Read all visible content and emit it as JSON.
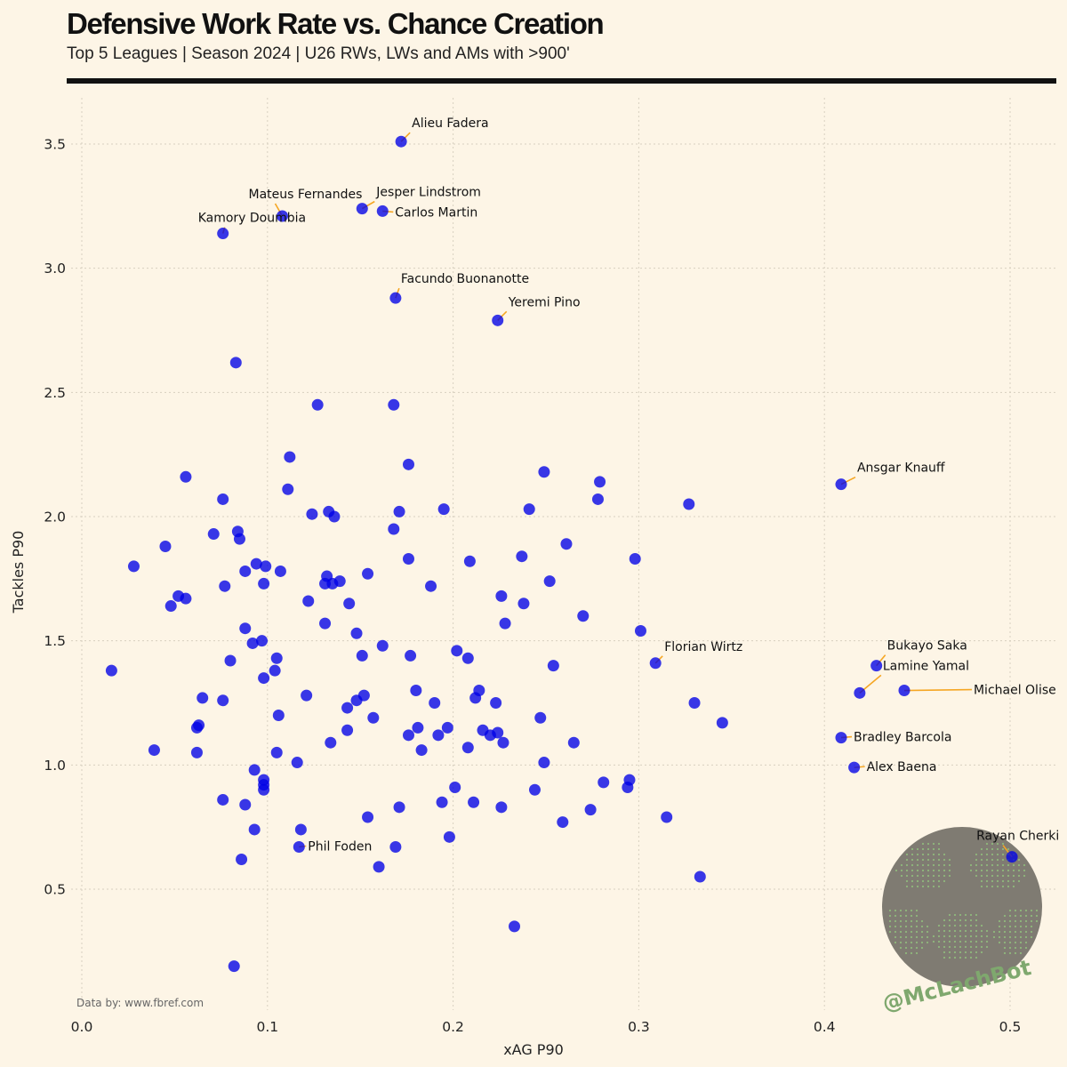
{
  "header": {
    "title": "Defensive Work Rate vs. Chance Creation",
    "subtitle": "Top 5 Leagues | Season 2024 | U26 RWs, LWs and AMs with >900'"
  },
  "footer": {
    "source": "Data by: www.fbref.com",
    "handle": "@McLachBot"
  },
  "colors": {
    "background": "#fdf5e6",
    "point": "#0000e6",
    "leader": "#f5a623",
    "logo": "#7f7b72",
    "handle": "#7fa86e"
  },
  "chart_data": {
    "type": "scatter",
    "title": "Defensive Work Rate vs. Chance Creation",
    "subtitle": "Top 5 Leagues | Season 2024 | U26 RWs, LWs and AMs with >900'",
    "xlabel": "xAG P90",
    "ylabel": "Tackles P90",
    "xlim": [
      -0.01,
      0.53
    ],
    "ylim": [
      0.05,
      3.68
    ],
    "xticks": [
      "0.0",
      "0.1",
      "0.2",
      "0.3",
      "0.4",
      "0.5"
    ],
    "yticks": [
      "0.5",
      "1.0",
      "1.5",
      "2.0",
      "2.5",
      "3.0",
      "3.5"
    ],
    "grid": true,
    "labeled": [
      {
        "name": "Alieu Fadera",
        "x": 0.172,
        "y": 3.51
      },
      {
        "name": "Mateus Fernandes",
        "x": 0.108,
        "y": 3.21
      },
      {
        "name": "Jesper Lindstrom",
        "x": 0.151,
        "y": 3.24
      },
      {
        "name": "Carlos Martin",
        "x": 0.162,
        "y": 3.23
      },
      {
        "name": "Kamory Doumbia",
        "x": 0.076,
        "y": 3.14
      },
      {
        "name": "Facundo Buonanotte",
        "x": 0.169,
        "y": 2.88
      },
      {
        "name": "Yeremi Pino",
        "x": 0.224,
        "y": 2.79
      },
      {
        "name": "Ansgar Knauff",
        "x": 0.409,
        "y": 2.13
      },
      {
        "name": "Florian Wirtz",
        "x": 0.309,
        "y": 1.41
      },
      {
        "name": "Bukayo Saka",
        "x": 0.428,
        "y": 1.4
      },
      {
        "name": "Lamine Yamal",
        "x": 0.419,
        "y": 1.29
      },
      {
        "name": "Michael Olise",
        "x": 0.443,
        "y": 1.3
      },
      {
        "name": "Bradley Barcola",
        "x": 0.409,
        "y": 1.11
      },
      {
        "name": "Alex Baena",
        "x": 0.416,
        "y": 0.99
      },
      {
        "name": "Phil Foden",
        "x": 0.117,
        "y": 0.67
      },
      {
        "name": "Rayan Cherki",
        "x": 0.501,
        "y": 0.63
      }
    ],
    "points": [
      [
        0.083,
        2.62
      ],
      [
        0.127,
        2.45
      ],
      [
        0.168,
        2.45
      ],
      [
        0.112,
        2.24
      ],
      [
        0.176,
        2.21
      ],
      [
        0.056,
        2.16
      ],
      [
        0.249,
        2.18
      ],
      [
        0.279,
        2.14
      ],
      [
        0.076,
        2.07
      ],
      [
        0.111,
        2.11
      ],
      [
        0.278,
        2.07
      ],
      [
        0.327,
        2.05
      ],
      [
        0.124,
        2.01
      ],
      [
        0.133,
        2.02
      ],
      [
        0.136,
        2.0
      ],
      [
        0.171,
        2.02
      ],
      [
        0.195,
        2.03
      ],
      [
        0.241,
        2.03
      ],
      [
        0.084,
        1.94
      ],
      [
        0.071,
        1.93
      ],
      [
        0.085,
        1.91
      ],
      [
        0.168,
        1.95
      ],
      [
        0.261,
        1.89
      ],
      [
        0.045,
        1.88
      ],
      [
        0.028,
        1.8
      ],
      [
        0.094,
        1.81
      ],
      [
        0.099,
        1.8
      ],
      [
        0.088,
        1.78
      ],
      [
        0.107,
        1.78
      ],
      [
        0.154,
        1.77
      ],
      [
        0.176,
        1.83
      ],
      [
        0.209,
        1.82
      ],
      [
        0.237,
        1.84
      ],
      [
        0.298,
        1.83
      ],
      [
        0.132,
        1.76
      ],
      [
        0.131,
        1.73
      ],
      [
        0.135,
        1.73
      ],
      [
        0.139,
        1.74
      ],
      [
        0.098,
        1.73
      ],
      [
        0.077,
        1.72
      ],
      [
        0.188,
        1.72
      ],
      [
        0.252,
        1.74
      ],
      [
        0.052,
        1.68
      ],
      [
        0.056,
        1.67
      ],
      [
        0.048,
        1.64
      ],
      [
        0.122,
        1.66
      ],
      [
        0.144,
        1.65
      ],
      [
        0.226,
        1.68
      ],
      [
        0.238,
        1.65
      ],
      [
        0.27,
        1.6
      ],
      [
        0.131,
        1.57
      ],
      [
        0.228,
        1.57
      ],
      [
        0.088,
        1.55
      ],
      [
        0.148,
        1.53
      ],
      [
        0.097,
        1.5
      ],
      [
        0.092,
        1.49
      ],
      [
        0.162,
        1.48
      ],
      [
        0.301,
        1.54
      ],
      [
        0.08,
        1.42
      ],
      [
        0.105,
        1.43
      ],
      [
        0.151,
        1.44
      ],
      [
        0.177,
        1.44
      ],
      [
        0.202,
        1.46
      ],
      [
        0.208,
        1.43
      ],
      [
        0.254,
        1.4
      ],
      [
        0.016,
        1.38
      ],
      [
        0.104,
        1.38
      ],
      [
        0.098,
        1.35
      ],
      [
        0.18,
        1.3
      ],
      [
        0.214,
        1.3
      ],
      [
        0.121,
        1.28
      ],
      [
        0.152,
        1.28
      ],
      [
        0.065,
        1.27
      ],
      [
        0.076,
        1.26
      ],
      [
        0.148,
        1.26
      ],
      [
        0.19,
        1.25
      ],
      [
        0.212,
        1.27
      ],
      [
        0.223,
        1.25
      ],
      [
        0.33,
        1.25
      ],
      [
        0.143,
        1.23
      ],
      [
        0.106,
        1.2
      ],
      [
        0.157,
        1.19
      ],
      [
        0.247,
        1.19
      ],
      [
        0.345,
        1.17
      ],
      [
        0.063,
        1.16
      ],
      [
        0.062,
        1.15
      ],
      [
        0.143,
        1.14
      ],
      [
        0.181,
        1.15
      ],
      [
        0.197,
        1.15
      ],
      [
        0.216,
        1.14
      ],
      [
        0.176,
        1.12
      ],
      [
        0.192,
        1.12
      ],
      [
        0.22,
        1.12
      ],
      [
        0.224,
        1.13
      ],
      [
        0.039,
        1.06
      ],
      [
        0.134,
        1.09
      ],
      [
        0.183,
        1.06
      ],
      [
        0.208,
        1.07
      ],
      [
        0.227,
        1.09
      ],
      [
        0.265,
        1.09
      ],
      [
        0.062,
        1.05
      ],
      [
        0.105,
        1.05
      ],
      [
        0.116,
        1.01
      ],
      [
        0.249,
        1.01
      ],
      [
        0.093,
        0.98
      ],
      [
        0.098,
        0.94
      ],
      [
        0.098,
        0.92
      ],
      [
        0.098,
        0.9
      ],
      [
        0.076,
        0.86
      ],
      [
        0.088,
        0.84
      ],
      [
        0.171,
        0.83
      ],
      [
        0.194,
        0.85
      ],
      [
        0.201,
        0.91
      ],
      [
        0.211,
        0.85
      ],
      [
        0.226,
        0.83
      ],
      [
        0.244,
        0.9
      ],
      [
        0.281,
        0.93
      ],
      [
        0.294,
        0.91
      ],
      [
        0.295,
        0.94
      ],
      [
        0.274,
        0.82
      ],
      [
        0.093,
        0.74
      ],
      [
        0.118,
        0.74
      ],
      [
        0.154,
        0.79
      ],
      [
        0.259,
        0.77
      ],
      [
        0.315,
        0.79
      ],
      [
        0.198,
        0.71
      ],
      [
        0.086,
        0.62
      ],
      [
        0.16,
        0.59
      ],
      [
        0.169,
        0.67
      ],
      [
        0.333,
        0.55
      ],
      [
        0.233,
        0.35
      ],
      [
        0.082,
        0.19
      ]
    ]
  }
}
